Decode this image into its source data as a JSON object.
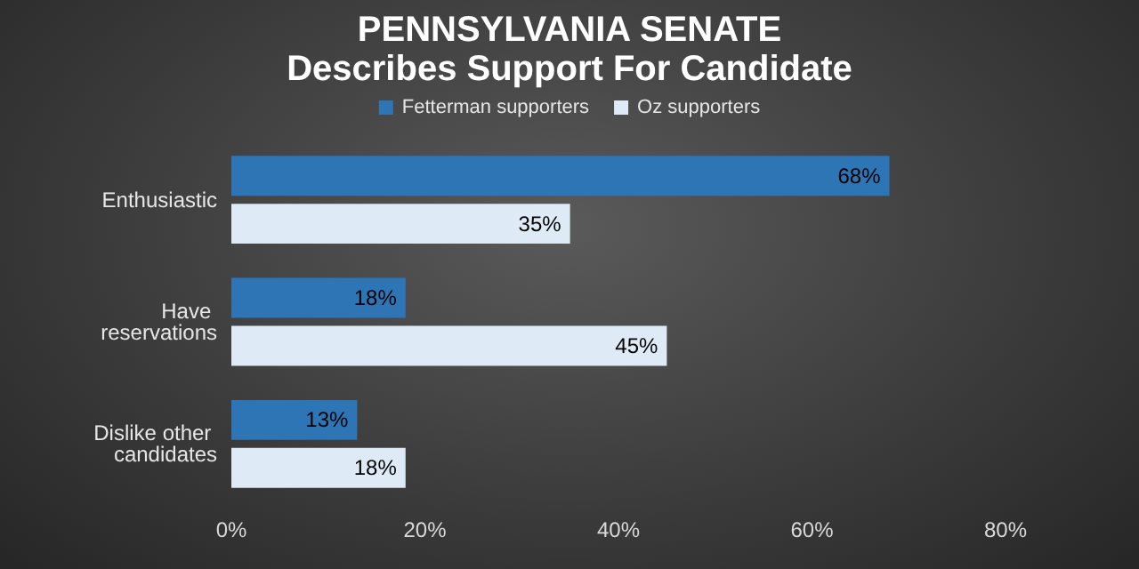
{
  "chart_data": {
    "type": "bar",
    "orientation": "horizontal",
    "title": "PENNSYLVANIA SENATE",
    "subtitle": "Describes Support For Candidate",
    "categories": [
      "Enthusiastic",
      "Have reservations",
      "Dislike other candidates"
    ],
    "series": [
      {
        "name": "Fetterman supporters",
        "color": "#2e75b6",
        "values": [
          68,
          18,
          13
        ],
        "value_labels": [
          "68%",
          "18%",
          "13%"
        ]
      },
      {
        "name": "Oz supporters",
        "color": "#deebf7",
        "values": [
          35,
          45,
          18
        ],
        "value_labels": [
          "35%",
          "45%",
          "18%"
        ]
      }
    ],
    "xlim": [
      0,
      80
    ],
    "xticks": [
      {
        "value": 0,
        "label": "0%"
      },
      {
        "value": 20,
        "label": "20%"
      },
      {
        "value": 40,
        "label": "40%"
      },
      {
        "value": 60,
        "label": "60%"
      },
      {
        "value": 80,
        "label": "80%"
      }
    ],
    "grid": false,
    "legend": "top"
  }
}
